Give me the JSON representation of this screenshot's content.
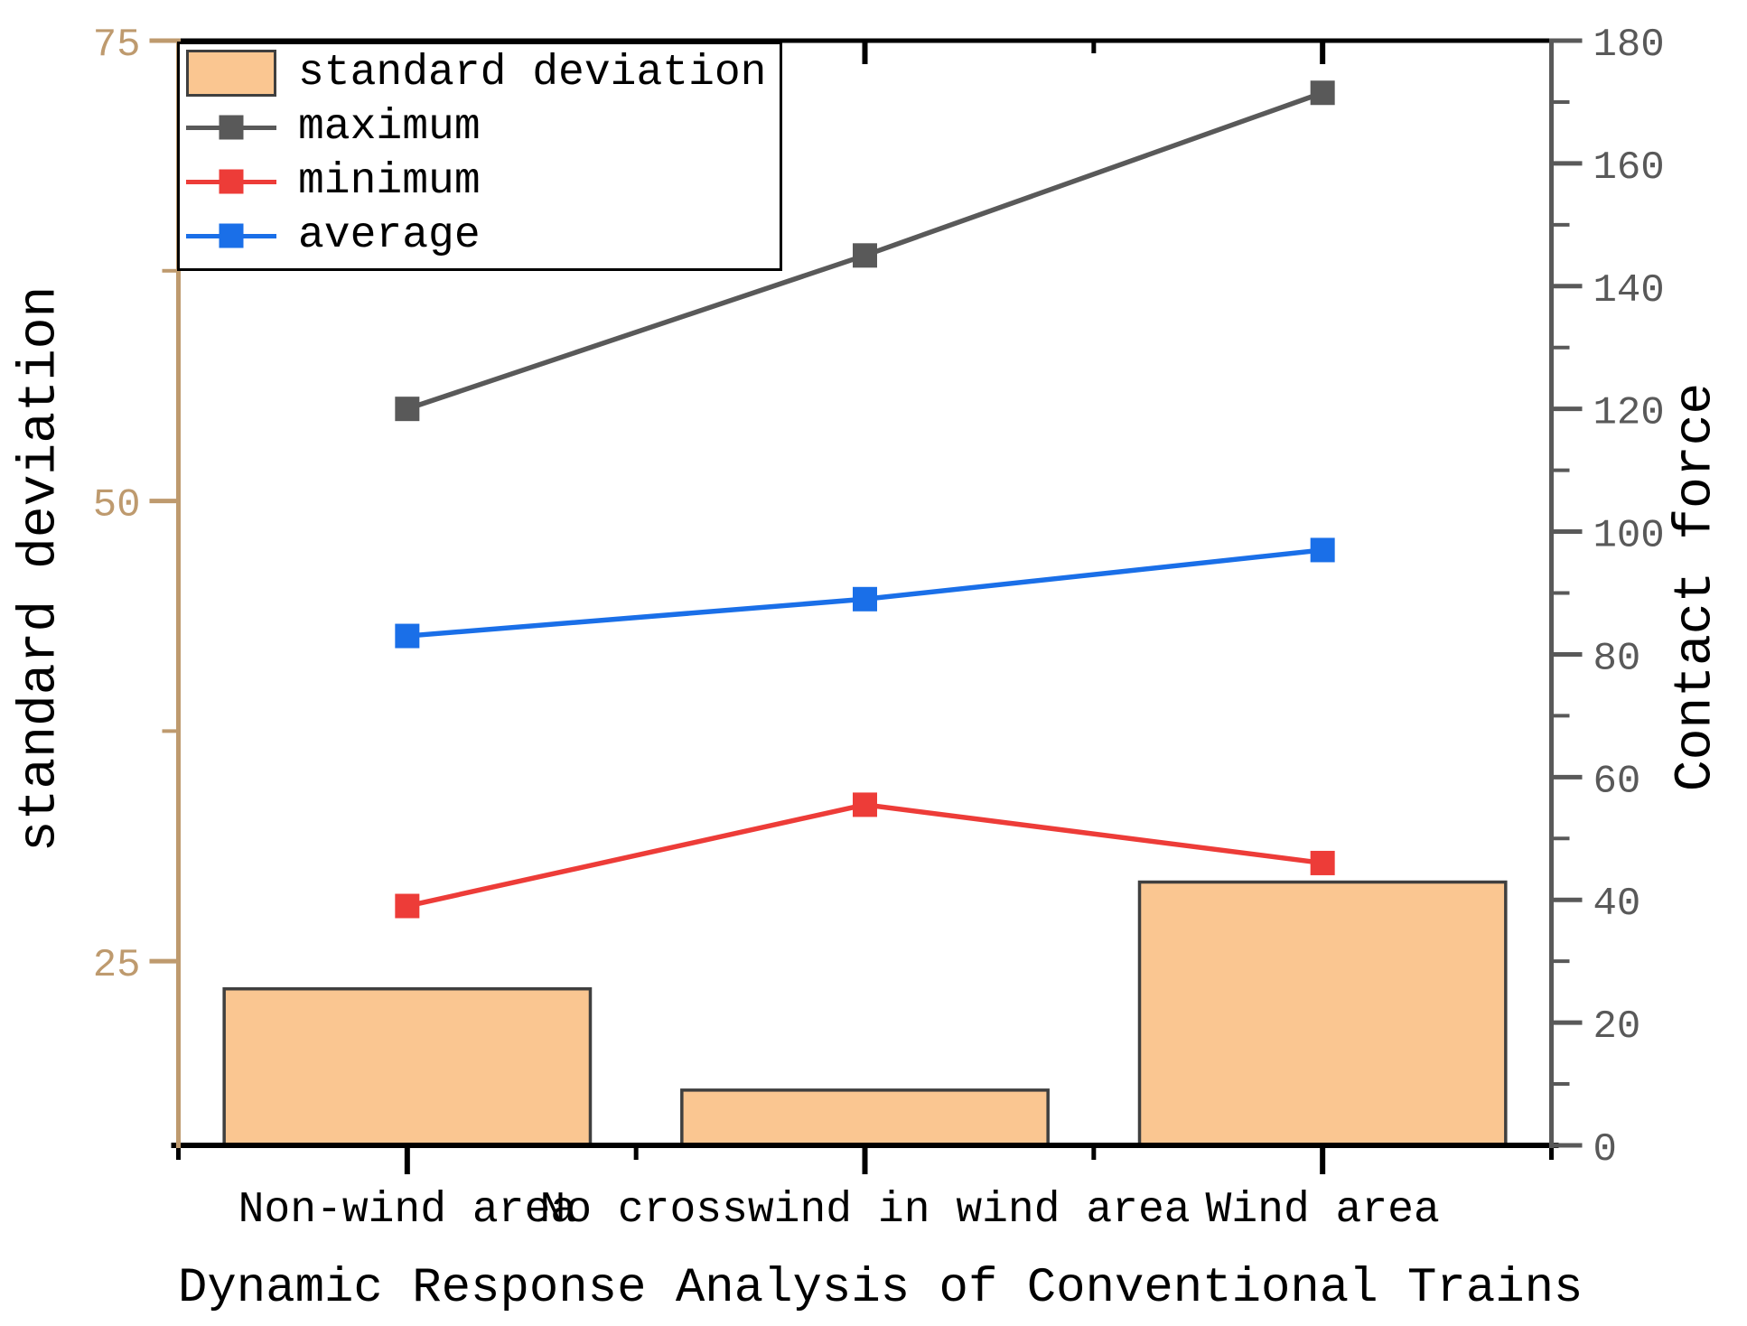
{
  "chart_data": {
    "type": "bar+line",
    "title": "Dynamic Response Analysis of Conventional Trains",
    "categories": [
      "Non-wind area",
      "No crosswind in wind area",
      "Wind area"
    ],
    "grid": false,
    "legend_position": "top-left",
    "left_axis": {
      "label": "standard deviation",
      "range": [
        15,
        75
      ],
      "major_ticks": [
        25,
        50,
        75
      ],
      "minor_ticks": [
        37.5,
        62.5
      ],
      "color": "#BE9A6E"
    },
    "right_axis": {
      "label": "Contact force",
      "range": [
        0,
        180
      ],
      "major_tick_step": 20,
      "minor_tick_step": 10,
      "color": "#595959"
    },
    "series": [
      {
        "name": "standard deviation",
        "type": "bar",
        "axis": "left",
        "values": [
          23.5,
          18,
          29.3
        ],
        "fill": "#FAC691",
        "stroke": "#3F3F3F"
      },
      {
        "name": "maximum",
        "type": "line",
        "axis": "right",
        "values": [
          120,
          145,
          171.5
        ],
        "color": "#595959"
      },
      {
        "name": "minimum",
        "type": "line",
        "axis": "right",
        "values": [
          39,
          55.5,
          46
        ],
        "color": "#ED3C38"
      },
      {
        "name": "average",
        "type": "line",
        "axis": "right",
        "values": [
          83,
          89,
          97
        ],
        "color": "#1A6FE8"
      }
    ]
  }
}
